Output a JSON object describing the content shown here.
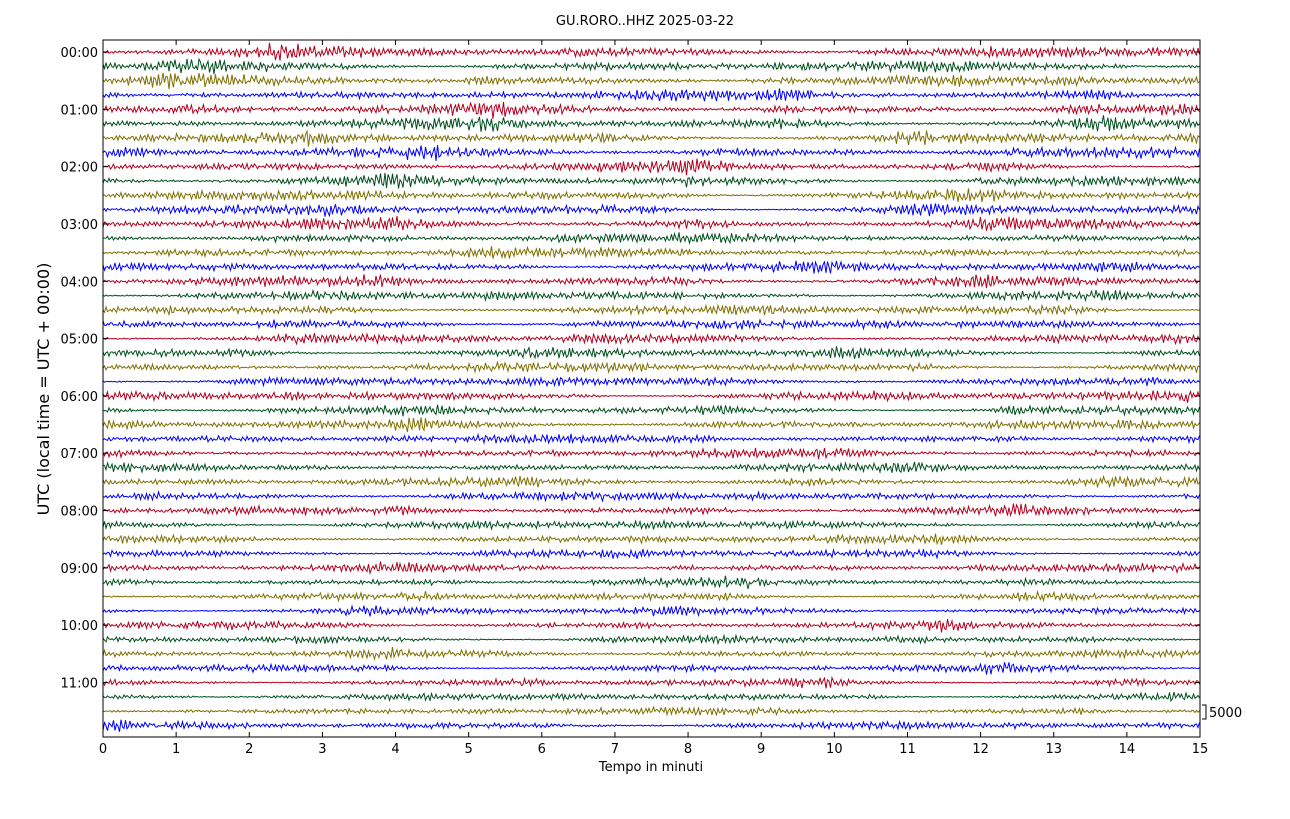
{
  "chart_data": {
    "type": "line",
    "title": "GU.RORO..HHZ 2025-03-22",
    "xlabel": "Tempo in minuti",
    "ylabel": "UTC (local time = UTC + 00:00)",
    "xlim": [
      0,
      15
    ],
    "x_ticks": [
      "0",
      "1",
      "2",
      "3",
      "4",
      "5",
      "6",
      "7",
      "8",
      "9",
      "10",
      "11",
      "12",
      "13",
      "14",
      "15"
    ],
    "hour_labels": [
      "00:00",
      "01:00",
      "02:00",
      "03:00",
      "04:00",
      "05:00",
      "06:00",
      "07:00",
      "08:00",
      "09:00",
      "10:00",
      "11:00"
    ],
    "traces_per_hour": 4,
    "trace_count": 48,
    "trace_colors": [
      "#b2001f",
      "#004f1d",
      "#7f6f00",
      "#0000ff"
    ],
    "scale_label": "5000",
    "grid": false
  }
}
